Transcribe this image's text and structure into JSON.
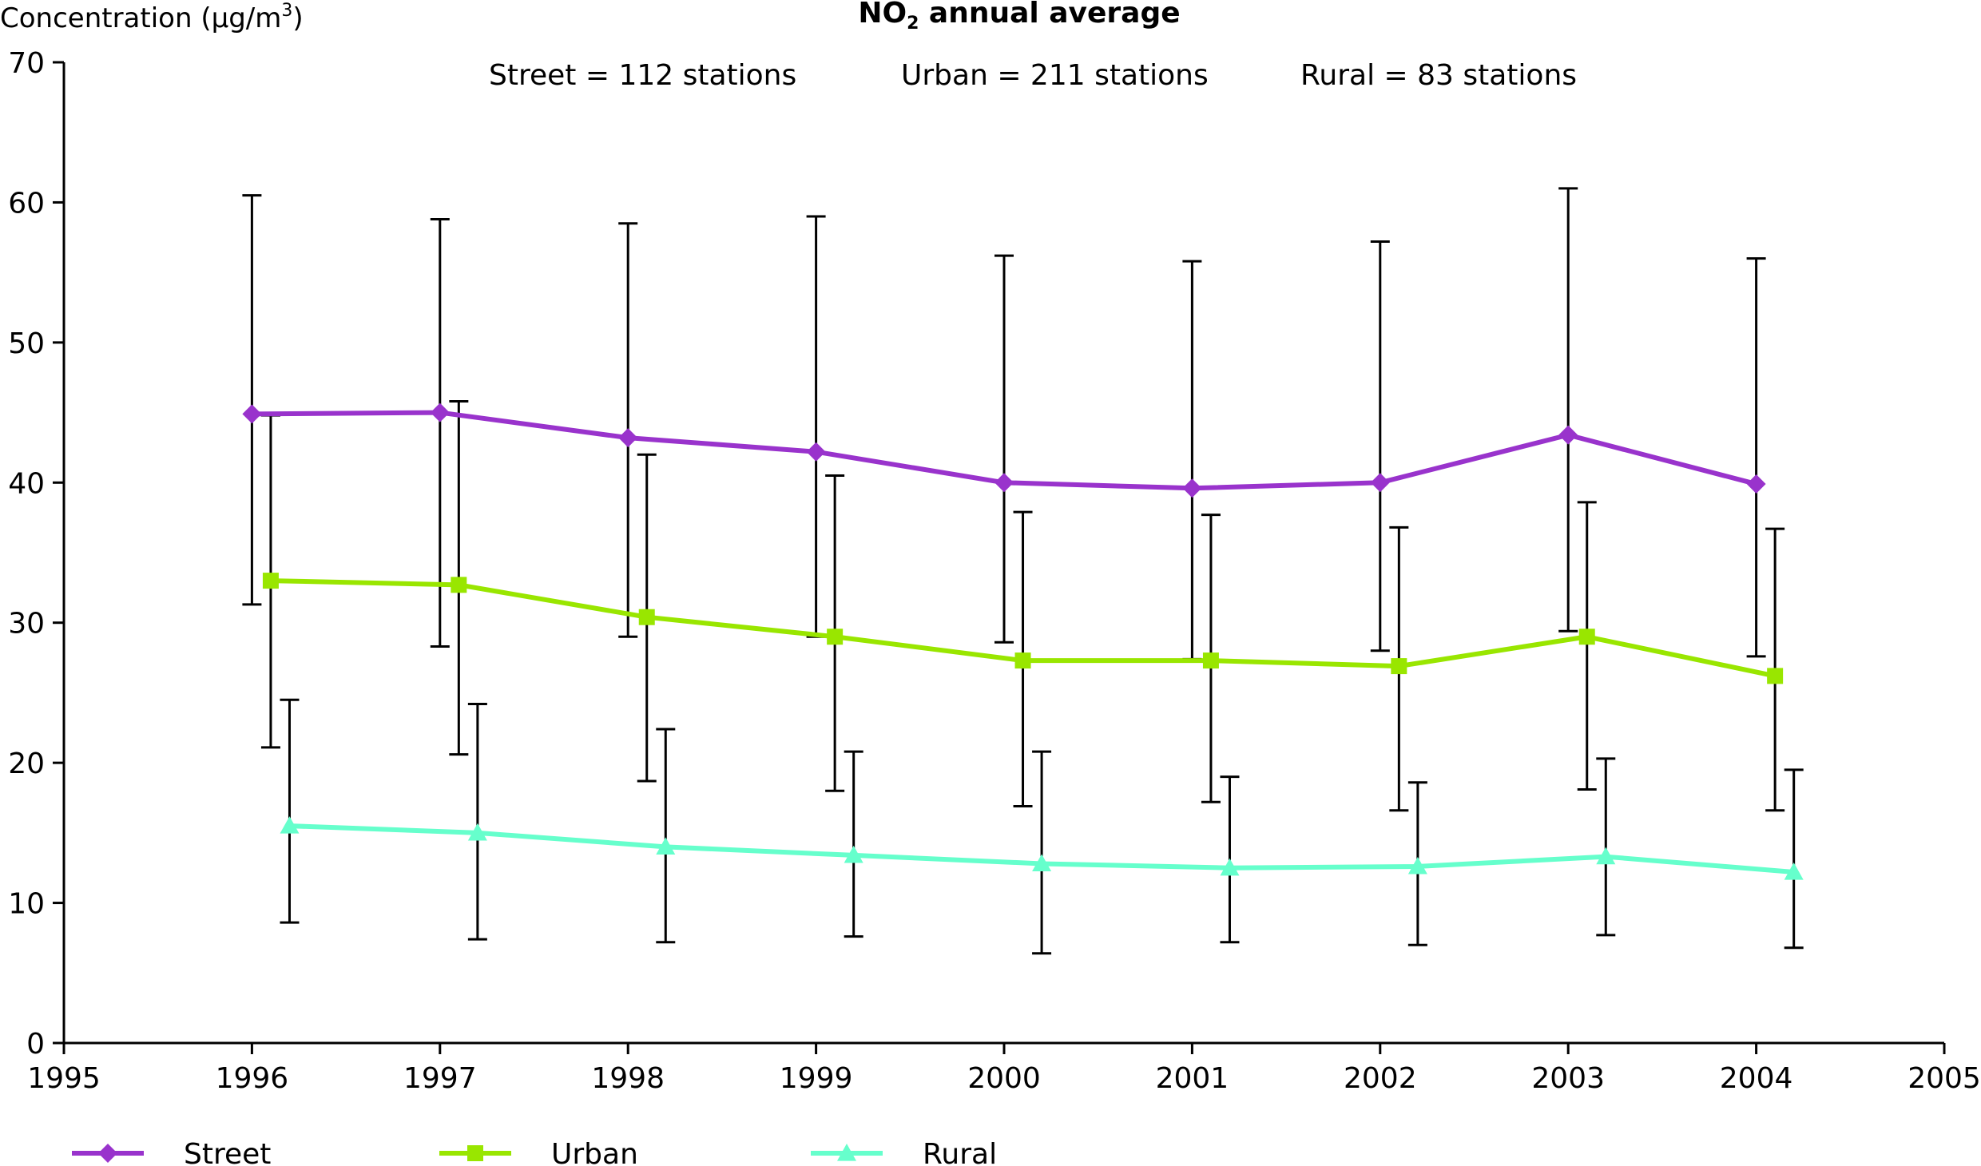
{
  "chart_data": {
    "type": "line",
    "title_main": "NO",
    "title_sub": "2",
    "title_rest": " annual average",
    "ylabel_main": "Concentration (µg/m",
    "ylabel_sup": "3",
    "ylabel_close": ")",
    "subtitles": [
      "Street = 112 stations",
      "Urban = 211 stations",
      "Rural = 83 stations"
    ],
    "xlim": [
      1995,
      2005
    ],
    "ylim": [
      0,
      70
    ],
    "xticks": [
      1995,
      1996,
      1997,
      1998,
      1999,
      2000,
      2001,
      2002,
      2003,
      2004,
      2005
    ],
    "yticks": [
      0,
      10,
      20,
      30,
      40,
      50,
      60,
      70
    ],
    "grid": false,
    "legend_position": "bottom",
    "series": [
      {
        "name": "Street",
        "marker": "diamond",
        "color": "#9933CC",
        "x": [
          1996,
          1997,
          1998,
          1999,
          2000,
          2001,
          2002,
          2003,
          2004
        ],
        "values": [
          44.9,
          45.0,
          43.2,
          42.2,
          40.0,
          39.6,
          40.0,
          43.4,
          39.9
        ],
        "err_low": [
          31.3,
          28.3,
          29.0,
          29.0,
          28.6,
          27.4,
          28.0,
          29.4,
          27.6
        ],
        "err_high": [
          60.5,
          58.8,
          58.5,
          59.0,
          56.2,
          55.8,
          57.2,
          61.0,
          56.0
        ]
      },
      {
        "name": "Urban",
        "marker": "square",
        "color": "#99E600",
        "x": [
          1996.1,
          1997.1,
          1998.1,
          1999.1,
          2000.1,
          2001.1,
          2002.1,
          2003.1,
          2004.1
        ],
        "values": [
          33.0,
          32.7,
          30.4,
          29.0,
          27.3,
          27.3,
          26.9,
          29.0,
          26.2
        ],
        "err_low": [
          21.1,
          20.6,
          18.7,
          18.0,
          16.9,
          17.2,
          16.6,
          18.1,
          16.6
        ],
        "err_high": [
          44.8,
          45.8,
          42.0,
          40.5,
          37.9,
          37.7,
          36.8,
          38.6,
          36.7
        ]
      },
      {
        "name": "Rural",
        "marker": "triangle",
        "color": "#66FFCC",
        "x": [
          1996.2,
          1997.2,
          1998.2,
          1999.2,
          2000.2,
          2001.2,
          2002.2,
          2003.2,
          2004.2
        ],
        "values": [
          15.5,
          15.0,
          14.0,
          13.4,
          12.8,
          12.5,
          12.6,
          13.3,
          12.2
        ],
        "err_low": [
          8.6,
          7.4,
          7.2,
          7.6,
          6.4,
          7.2,
          7.0,
          7.7,
          6.8
        ],
        "err_high": [
          24.5,
          24.2,
          22.4,
          20.8,
          20.8,
          19.0,
          18.6,
          20.3,
          19.5
        ]
      }
    ]
  }
}
